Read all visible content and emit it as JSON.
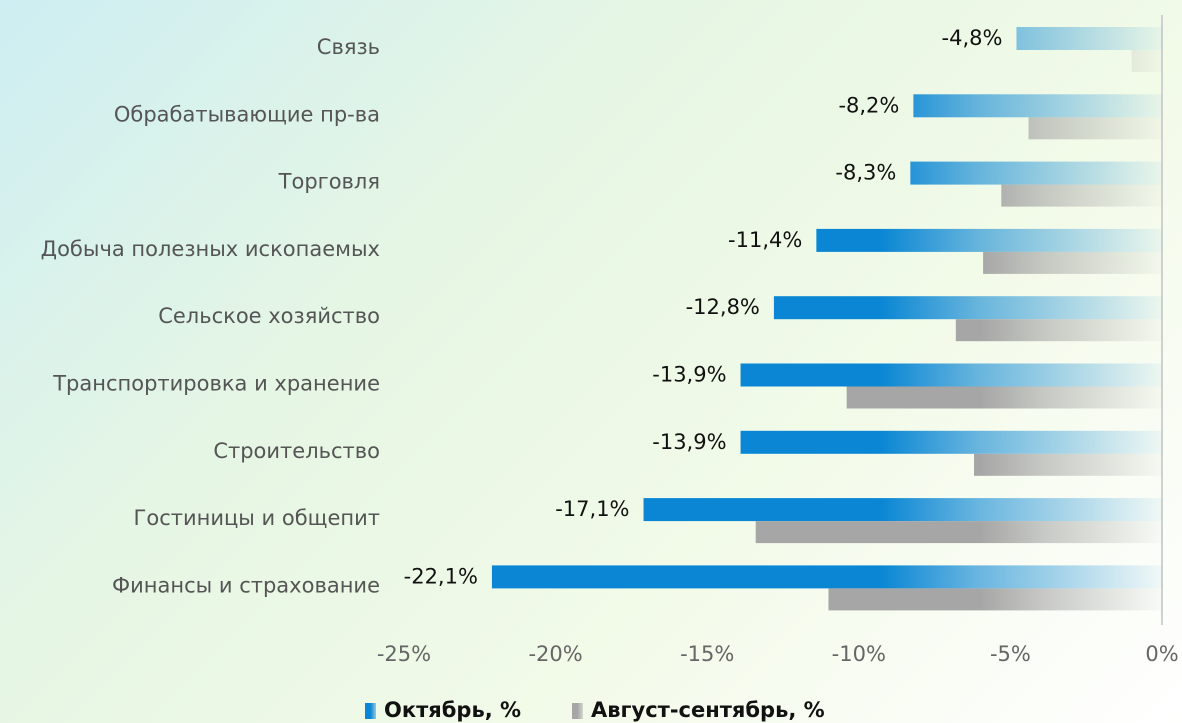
{
  "chart_data": {
    "type": "bar",
    "orientation": "horizontal",
    "categories": [
      "Связь",
      "Обрабатывающие пр-ва",
      "Торговля",
      "Добыча полезных ископаемых",
      "Сельское хозяйство",
      "Транспортировка и хранение",
      "Строительство",
      "Гостиницы и общепит",
      "Финансы и страхование"
    ],
    "series": [
      {
        "name": "Октябрь, %",
        "color": "#0a86d4",
        "values": [
          -4.8,
          -8.2,
          -8.3,
          -11.4,
          -12.8,
          -13.9,
          -13.9,
          -17.1,
          -22.1
        ],
        "value_labels": [
          "-4,8%",
          "-8,2%",
          "-8,3%",
          "-11,4%",
          "-12,8%",
          "-13,9%",
          "-13,9%",
          "-17,1%",
          "-22,1%"
        ]
      },
      {
        "name": "Август-сентябрь, %",
        "color": "#a6a6a6",
        "values": [
          -1.0,
          -4.4,
          -5.3,
          -5.9,
          -6.8,
          -10.4,
          -6.2,
          -13.4,
          -11.0
        ]
      }
    ],
    "xlim": [
      -25,
      0
    ],
    "xticks": [
      {
        "value": -25,
        "label": "-25%"
      },
      {
        "value": -20,
        "label": "-20%"
      },
      {
        "value": -15,
        "label": "-15%"
      },
      {
        "value": -10,
        "label": "-10%"
      },
      {
        "value": -5,
        "label": "-5%"
      },
      {
        "value": 0,
        "label": "0%"
      }
    ],
    "legend": "bottom"
  }
}
